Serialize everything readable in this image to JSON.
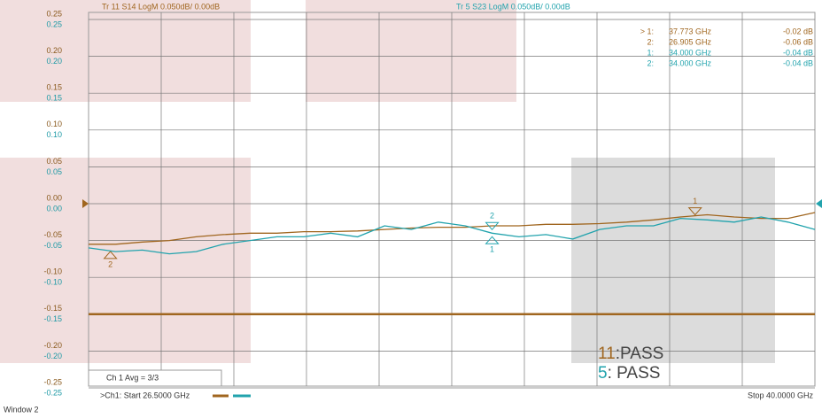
{
  "chart_data": {
    "type": "line",
    "window": "Window 2",
    "channel_avg": "Ch 1 Avg =   3/3",
    "start_label": ">Ch1:  Start  26.5000 GHz",
    "stop_label": "Stop  40.0000 GHz",
    "xlim": [
      26.5,
      40
    ],
    "ylim": [
      -0.25,
      0.25
    ],
    "y2lim": [
      -0.25,
      0.25
    ],
    "yticks": [
      {
        "value": 0.25,
        "label": "0.25"
      },
      {
        "value": 0.2,
        "label": "0.20"
      },
      {
        "value": 0.15,
        "label": "0.15"
      },
      {
        "value": 0.1,
        "label": "0.10"
      },
      {
        "value": 0.05,
        "label": "0.05"
      },
      {
        "value": 0,
        "label": "0.00"
      },
      {
        "value": -0.05,
        "label": "-0.05"
      },
      {
        "value": -0.1,
        "label": "-0.10"
      },
      {
        "value": -0.15,
        "label": "-0.15"
      },
      {
        "value": -0.2,
        "label": "-0.20"
      },
      {
        "value": -0.25,
        "label": "-0.25"
      }
    ],
    "y2ticks": [
      {
        "value": 0.25,
        "label": "0.25"
      },
      {
        "value": 0.2,
        "label": "0.20"
      },
      {
        "value": 0.15,
        "label": "0.15"
      },
      {
        "value": 0.1,
        "label": "0.10"
      },
      {
        "value": 0.05,
        "label": "0.05"
      },
      {
        "value": 0,
        "label": "0.00"
      },
      {
        "value": -0.05,
        "label": "-0.05"
      },
      {
        "value": -0.1,
        "label": "-0.10"
      },
      {
        "value": -0.15,
        "label": "-0.15"
      },
      {
        "value": -0.2,
        "label": "-0.20"
      },
      {
        "value": -0.25,
        "label": "-0.25"
      }
    ],
    "grid": true,
    "limit_line": -0.15,
    "x": [
      26.5,
      27,
      27.5,
      28,
      28.5,
      29,
      29.5,
      30,
      30.5,
      31,
      31.5,
      32,
      32.5,
      33,
      33.5,
      34,
      34.5,
      35,
      35.5,
      36,
      36.5,
      37,
      37.5,
      38,
      38.5,
      39,
      39.5,
      40
    ],
    "series": [
      {
        "name": "Tr 11  S14 LogM 0.050dB/  0.00dB",
        "color": "#a0661f",
        "values": [
          -0.055,
          -0.055,
          -0.052,
          -0.05,
          -0.045,
          -0.042,
          -0.04,
          -0.04,
          -0.038,
          -0.038,
          -0.037,
          -0.035,
          -0.033,
          -0.032,
          -0.032,
          -0.03,
          -0.03,
          -0.028,
          -0.028,
          -0.027,
          -0.025,
          -0.022,
          -0.018,
          -0.015,
          -0.018,
          -0.02,
          -0.02,
          -0.012
        ],
        "pass": {
          "trace": "11",
          "text": ":PASS"
        },
        "markers": [
          {
            "number": "1",
            "label": "> 1:",
            "x": 37.773,
            "x_label": "37.773 GHz",
            "y": -0.02,
            "y_label": "-0.02 dB"
          },
          {
            "number": "2",
            "label": "2:",
            "x": 26.905,
            "x_label": "26.905 GHz",
            "y": -0.06,
            "y_label": "-0.06 dB"
          }
        ]
      },
      {
        "name": "Tr 5  S23 LogM 0.050dB/  0.00dB",
        "color": "#22a3ad",
        "axis": "y2",
        "values": [
          -0.06,
          -0.065,
          -0.063,
          -0.068,
          -0.065,
          -0.055,
          -0.05,
          -0.045,
          -0.045,
          -0.04,
          -0.045,
          -0.03,
          -0.035,
          -0.025,
          -0.03,
          -0.04,
          -0.045,
          -0.042,
          -0.048,
          -0.035,
          -0.03,
          -0.03,
          -0.02,
          -0.022,
          -0.025,
          -0.018,
          -0.025,
          -0.035
        ],
        "pass": {
          "trace": "5",
          "text": ": PASS"
        },
        "markers": [
          {
            "number": "1",
            "label": "1:",
            "x": 34.0,
            "x_label": "34.000 GHz",
            "y": -0.04,
            "y_label": "-0.04 dB"
          },
          {
            "number": "2",
            "label": "2:",
            "x": 34.0,
            "x_label": "34.000 GHz",
            "y": -0.04,
            "y_label": "-0.04 dB"
          }
        ]
      }
    ]
  }
}
